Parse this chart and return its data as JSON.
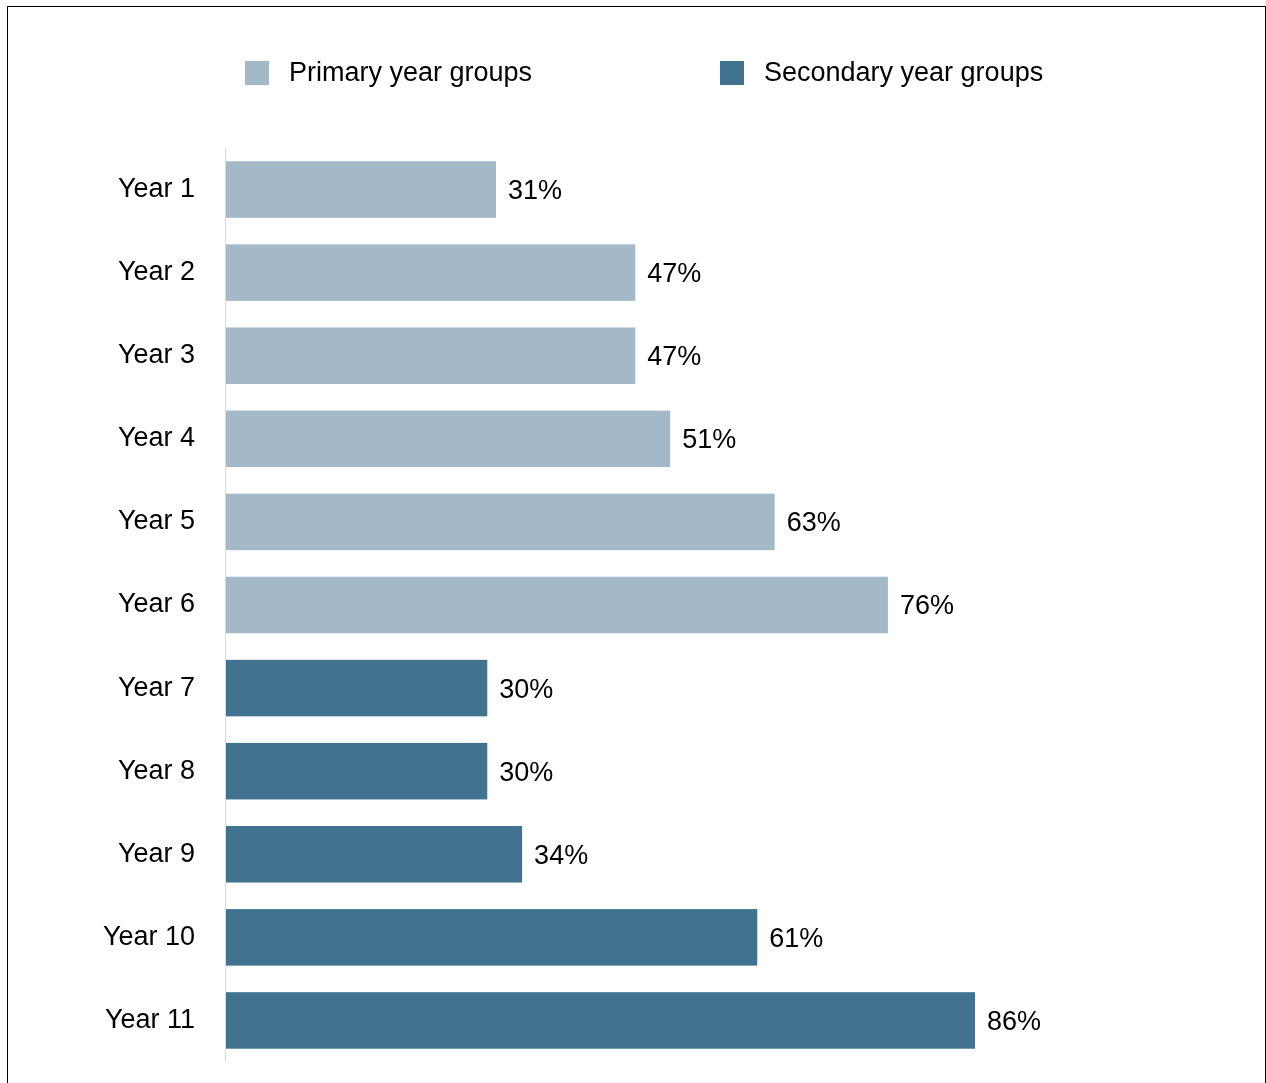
{
  "chart_data": {
    "type": "bar",
    "orientation": "horizontal",
    "stacked": true,
    "legend": "top",
    "categories": [
      "Year 1",
      "Year 2",
      "Year 3",
      "Year 4",
      "Year 5",
      "Year 6",
      "Year 7",
      "Year 8",
      "Year 9",
      "Year 10",
      "Year 11"
    ],
    "series": [
      {
        "name": "Primary year groups",
        "color": "#a3b9c8",
        "values": [
          31,
          47,
          47,
          51,
          63,
          76,
          null,
          null,
          null,
          null,
          null
        ],
        "value_labels": [
          "31%",
          "47%",
          "47%",
          "51%",
          "63%",
          "76%",
          null,
          null,
          null,
          null,
          null
        ]
      },
      {
        "name": "Secondary year groups",
        "color": "#41728f",
        "values": [
          null,
          null,
          null,
          null,
          null,
          null,
          30,
          30,
          34,
          61,
          86
        ],
        "value_labels": [
          null,
          null,
          null,
          null,
          null,
          null,
          "30%",
          "30%",
          "34%",
          "61%",
          "86%"
        ]
      }
    ]
  }
}
